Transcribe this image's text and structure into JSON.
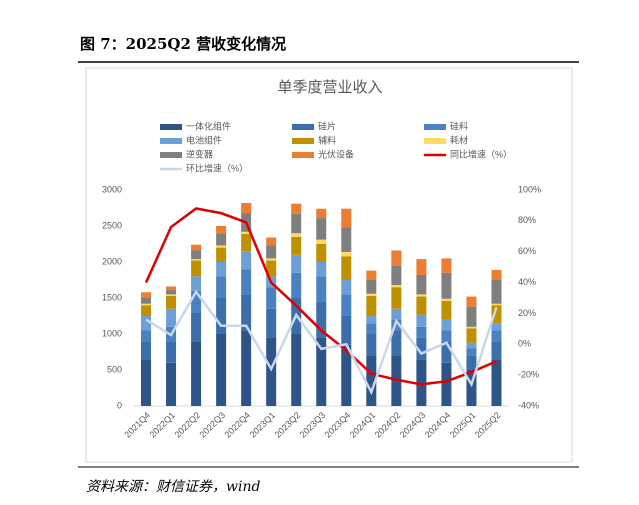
{
  "figure_title": "图 7：2025Q2 营收变化情况",
  "source": "资料来源：财信证券，wind",
  "chart_data": {
    "type": "bar-line",
    "title": "单季度营业收入",
    "categories": [
      "2021Q4",
      "2022Q1",
      "2022Q2",
      "2022Q3",
      "2022Q4",
      "2023Q1",
      "2023Q2",
      "2023Q3",
      "2023Q4",
      "2024Q1",
      "2024Q2",
      "2024Q3",
      "2024Q4",
      "2025Q1",
      "2025Q2"
    ],
    "ylim": [
      0,
      3000
    ],
    "yticks": [
      0,
      500,
      1000,
      1500,
      2000,
      2500,
      3000
    ],
    "y2lim": [
      -40,
      100
    ],
    "y2ticks": [
      {
        "value": -40,
        "label": "-40%"
      },
      {
        "value": -20,
        "label": "-20%"
      },
      {
        "value": 0,
        "label": "0%"
      },
      {
        "value": 20,
        "label": "20%"
      },
      {
        "value": 40,
        "label": "40%"
      },
      {
        "value": 60,
        "label": "60%"
      },
      {
        "value": 80,
        "label": "80%"
      },
      {
        "value": 100,
        "label": "100%"
      }
    ],
    "series": [
      {
        "name": "一体化组件",
        "type": "bar",
        "color": "#2e5488",
        "values": [
          650,
          600,
          900,
          1000,
          1050,
          950,
          1000,
          950,
          850,
          700,
          700,
          650,
          600,
          500,
          650
        ]
      },
      {
        "name": "硅片",
        "type": "bar",
        "color": "#3c6eaa",
        "values": [
          250,
          300,
          400,
          500,
          500,
          400,
          500,
          500,
          400,
          300,
          350,
          300,
          300,
          200,
          250
        ]
      },
      {
        "name": "硅料",
        "type": "bar",
        "color": "#4a81c0",
        "values": [
          150,
          200,
          300,
          300,
          350,
          300,
          350,
          350,
          300,
          150,
          150,
          150,
          150,
          100,
          150
        ]
      },
      {
        "name": "电池组件",
        "type": "bar",
        "color": "#6d9fd6",
        "values": [
          200,
          250,
          200,
          200,
          250,
          150,
          250,
          200,
          200,
          100,
          150,
          170,
          150,
          80,
          100
        ]
      },
      {
        "name": "辅料",
        "type": "bar",
        "color": "#bf9000",
        "values": [
          150,
          180,
          220,
          200,
          240,
          220,
          250,
          250,
          330,
          280,
          300,
          250,
          260,
          200,
          250
        ]
      },
      {
        "name": "耗材",
        "type": "bar",
        "color": "#ffd966",
        "values": [
          20,
          20,
          20,
          30,
          30,
          30,
          50,
          60,
          60,
          30,
          30,
          30,
          30,
          20,
          20
        ]
      },
      {
        "name": "逆变器",
        "type": "bar",
        "color": "#7f7f7f",
        "values": [
          90,
          60,
          120,
          170,
          260,
          180,
          270,
          300,
          340,
          190,
          270,
          270,
          360,
          280,
          330
        ]
      },
      {
        "name": "光伏设备",
        "type": "bar",
        "color": "#ed7d31",
        "values": [
          70,
          50,
          80,
          100,
          140,
          110,
          140,
          130,
          260,
          130,
          210,
          220,
          200,
          140,
          140
        ]
      },
      {
        "name": "同比增速（%）",
        "type": "line",
        "axis": "y2",
        "color": "#e00000",
        "values": [
          40,
          76,
          88,
          85,
          79,
          40,
          25,
          9,
          -4,
          -19,
          -23,
          -26,
          -24,
          -18,
          -11
        ]
      },
      {
        "name": "环比增速（%）",
        "type": "line",
        "axis": "y2",
        "color": "#c9d7ee",
        "values": [
          16,
          6,
          34,
          12,
          12,
          -16,
          19,
          -3,
          0,
          -31,
          15,
          -6,
          1,
          -26,
          24
        ]
      }
    ]
  }
}
